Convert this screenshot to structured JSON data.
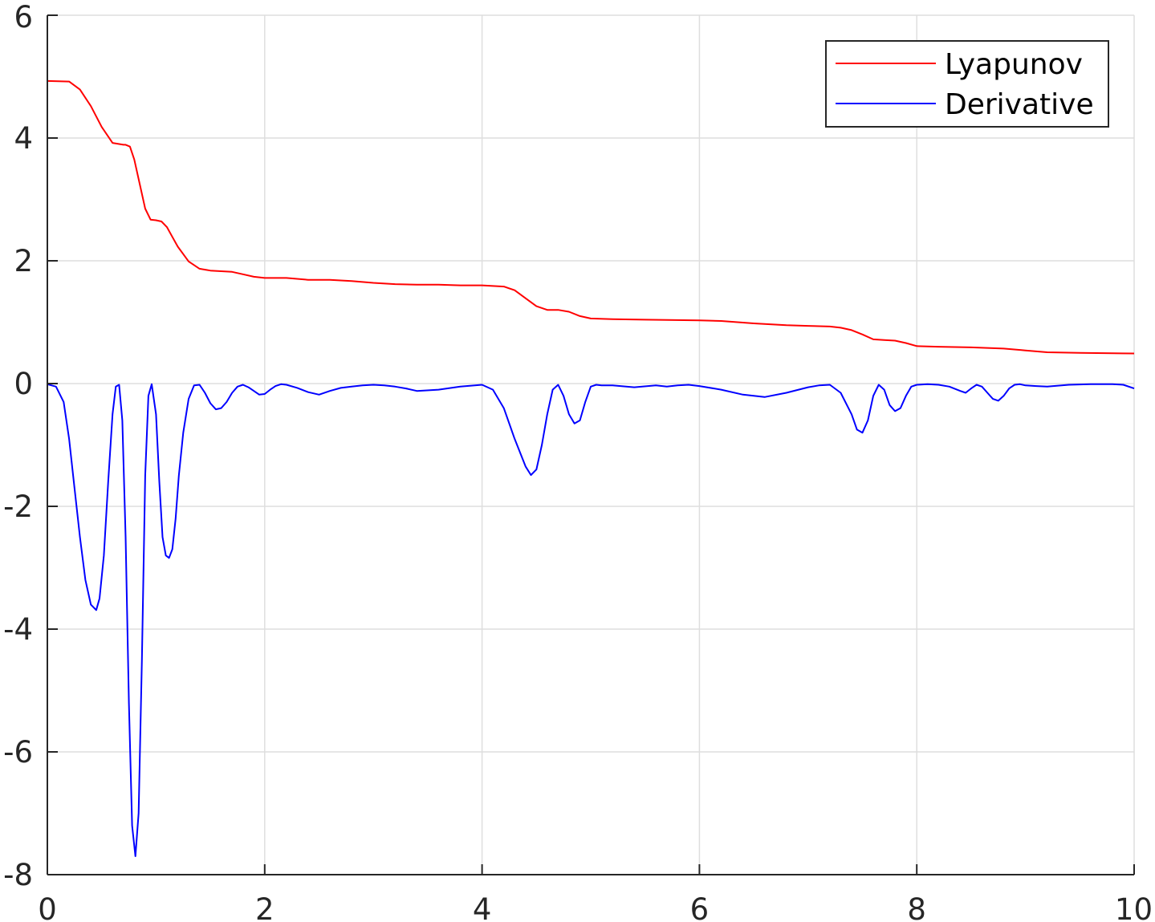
{
  "chart_data": {
    "type": "line",
    "title": "",
    "xlabel": "",
    "ylabel": "",
    "xlim": [
      0,
      10
    ],
    "ylim": [
      -8,
      6
    ],
    "xticks": [
      0,
      2,
      4,
      6,
      8,
      10
    ],
    "yticks": [
      -8,
      -6,
      -4,
      -2,
      0,
      2,
      4,
      6
    ],
    "xtick_labels": [
      "0",
      "2",
      "4",
      "6",
      "8",
      "10"
    ],
    "ytick_labels": [
      "-8",
      "-6",
      "-4",
      "-2",
      "0",
      "2",
      "4",
      "6"
    ],
    "grid": true,
    "legend_position": "top-right",
    "series": [
      {
        "name": "Lyapunov",
        "color": "#ff0000",
        "x": [
          0,
          0.2,
          0.3,
          0.4,
          0.5,
          0.6,
          0.7,
          0.72,
          0.76,
          0.8,
          0.85,
          0.9,
          0.95,
          1.0,
          1.05,
          1.1,
          1.15,
          1.2,
          1.3,
          1.4,
          1.5,
          1.6,
          1.7,
          1.8,
          1.9,
          2.0,
          2.2,
          2.4,
          2.6,
          2.8,
          3.0,
          3.2,
          3.4,
          3.6,
          3.8,
          4.0,
          4.1,
          4.2,
          4.3,
          4.4,
          4.5,
          4.6,
          4.7,
          4.8,
          4.9,
          5.0,
          5.2,
          5.5,
          6.0,
          6.2,
          6.5,
          6.8,
          7.0,
          7.2,
          7.3,
          7.4,
          7.5,
          7.6,
          7.7,
          7.8,
          7.9,
          8.0,
          8.2,
          8.5,
          8.8,
          9.0,
          9.2,
          9.5,
          10.0
        ],
        "y": [
          4.93,
          4.92,
          4.79,
          4.52,
          4.18,
          3.92,
          3.89,
          3.89,
          3.86,
          3.65,
          3.25,
          2.85,
          2.67,
          2.66,
          2.64,
          2.55,
          2.39,
          2.23,
          1.99,
          1.87,
          1.84,
          1.83,
          1.82,
          1.78,
          1.74,
          1.72,
          1.72,
          1.69,
          1.69,
          1.67,
          1.64,
          1.62,
          1.61,
          1.61,
          1.6,
          1.6,
          1.59,
          1.58,
          1.52,
          1.39,
          1.26,
          1.2,
          1.2,
          1.17,
          1.1,
          1.06,
          1.05,
          1.04,
          1.03,
          1.02,
          0.98,
          0.95,
          0.94,
          0.93,
          0.91,
          0.87,
          0.8,
          0.72,
          0.71,
          0.7,
          0.66,
          0.61,
          0.6,
          0.59,
          0.57,
          0.54,
          0.51,
          0.5,
          0.49
        ]
      },
      {
        "name": "Derivative",
        "color": "#0000ff",
        "x": [
          0,
          0.08,
          0.15,
          0.2,
          0.25,
          0.3,
          0.35,
          0.4,
          0.45,
          0.48,
          0.52,
          0.56,
          0.6,
          0.63,
          0.66,
          0.69,
          0.72,
          0.75,
          0.78,
          0.81,
          0.84,
          0.87,
          0.9,
          0.93,
          0.96,
          1.0,
          1.03,
          1.06,
          1.09,
          1.12,
          1.15,
          1.18,
          1.21,
          1.25,
          1.3,
          1.35,
          1.4,
          1.45,
          1.5,
          1.55,
          1.6,
          1.65,
          1.7,
          1.75,
          1.8,
          1.85,
          1.9,
          1.95,
          2.0,
          2.05,
          2.1,
          2.15,
          2.2,
          2.3,
          2.4,
          2.5,
          2.6,
          2.7,
          2.8,
          2.9,
          3.0,
          3.1,
          3.2,
          3.3,
          3.4,
          3.6,
          3.8,
          4.0,
          4.1,
          4.2,
          4.3,
          4.4,
          4.45,
          4.5,
          4.55,
          4.6,
          4.65,
          4.7,
          4.75,
          4.8,
          4.85,
          4.9,
          4.95,
          5.0,
          5.05,
          5.1,
          5.2,
          5.4,
          5.6,
          5.7,
          5.8,
          5.9,
          6.0,
          6.2,
          6.4,
          6.6,
          6.8,
          7.0,
          7.1,
          7.2,
          7.3,
          7.4,
          7.45,
          7.5,
          7.55,
          7.6,
          7.65,
          7.7,
          7.75,
          7.8,
          7.85,
          7.9,
          7.95,
          8.0,
          8.1,
          8.2,
          8.3,
          8.4,
          8.45,
          8.5,
          8.55,
          8.6,
          8.65,
          8.7,
          8.75,
          8.8,
          8.85,
          8.9,
          8.95,
          9.0,
          9.1,
          9.2,
          9.4,
          9.6,
          9.8,
          9.9,
          10.0
        ],
        "y": [
          -0.01,
          -0.05,
          -0.3,
          -0.9,
          -1.7,
          -2.5,
          -3.2,
          -3.6,
          -3.69,
          -3.5,
          -2.8,
          -1.6,
          -0.5,
          -0.05,
          -0.02,
          -0.6,
          -2.5,
          -5.2,
          -7.2,
          -7.7,
          -7.0,
          -4.5,
          -1.5,
          -0.2,
          -0.01,
          -0.5,
          -1.6,
          -2.5,
          -2.8,
          -2.84,
          -2.7,
          -2.2,
          -1.5,
          -0.8,
          -0.25,
          -0.03,
          -0.02,
          -0.15,
          -0.32,
          -0.42,
          -0.4,
          -0.3,
          -0.15,
          -0.05,
          -0.02,
          -0.06,
          -0.12,
          -0.18,
          -0.17,
          -0.1,
          -0.04,
          -0.01,
          -0.02,
          -0.07,
          -0.14,
          -0.18,
          -0.12,
          -0.07,
          -0.05,
          -0.03,
          -0.02,
          -0.03,
          -0.05,
          -0.08,
          -0.12,
          -0.1,
          -0.05,
          -0.02,
          -0.1,
          -0.4,
          -0.9,
          -1.35,
          -1.49,
          -1.4,
          -1.0,
          -0.5,
          -0.1,
          -0.02,
          -0.2,
          -0.5,
          -0.65,
          -0.6,
          -0.3,
          -0.05,
          -0.02,
          -0.03,
          -0.03,
          -0.06,
          -0.03,
          -0.05,
          -0.03,
          -0.02,
          -0.04,
          -0.1,
          -0.18,
          -0.22,
          -0.15,
          -0.06,
          -0.03,
          -0.02,
          -0.15,
          -0.5,
          -0.75,
          -0.8,
          -0.6,
          -0.2,
          -0.02,
          -0.1,
          -0.35,
          -0.45,
          -0.4,
          -0.2,
          -0.05,
          -0.02,
          -0.01,
          -0.02,
          -0.05,
          -0.12,
          -0.15,
          -0.08,
          -0.02,
          -0.05,
          -0.15,
          -0.25,
          -0.28,
          -0.2,
          -0.08,
          -0.02,
          -0.01,
          -0.03,
          -0.04,
          -0.05,
          -0.02,
          -0.01,
          -0.01,
          -0.02,
          -0.08
        ]
      }
    ]
  },
  "legend": {
    "items": [
      {
        "label": "Lyapunov",
        "color": "#ff0000"
      },
      {
        "label": "Derivative",
        "color": "#0000ff"
      }
    ]
  }
}
